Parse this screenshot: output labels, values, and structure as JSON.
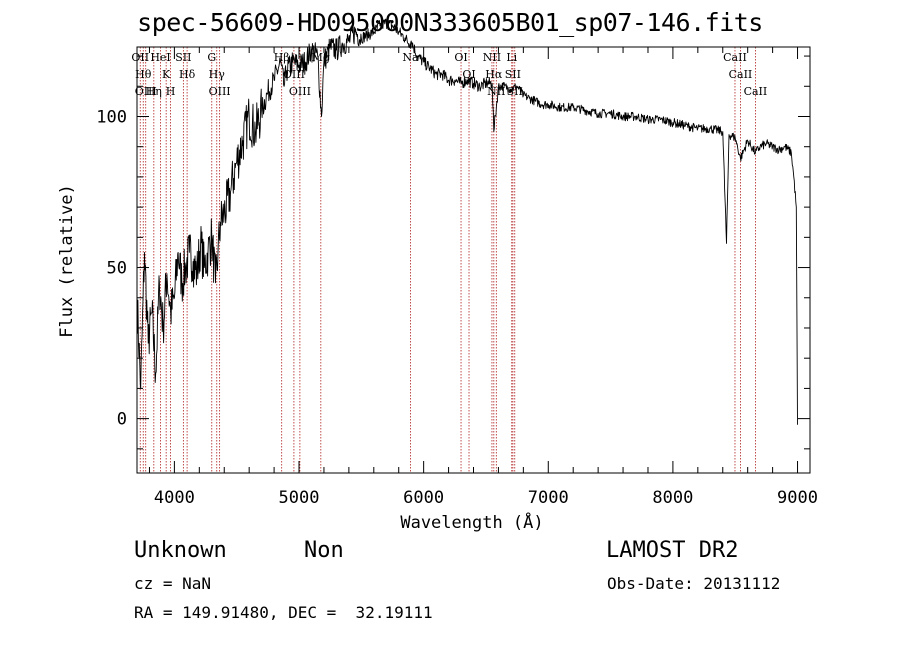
{
  "colors": {
    "axis": "#000000",
    "spectrum": "#000000",
    "line_marker": "#b02020"
  },
  "chart_data": {
    "type": "line",
    "title": "spec-56609-HD095000N333605B01_sp07-146.fits",
    "xlabel": "Wavelength (Å)",
    "ylabel": "Flux (relative)",
    "xlim": [
      3700,
      9100
    ],
    "ylim": [
      -18,
      123
    ],
    "xticks": [
      {
        "value": 4000,
        "label": "4000"
      },
      {
        "value": 5000,
        "label": "5000"
      },
      {
        "value": 6000,
        "label": "6000"
      },
      {
        "value": 7000,
        "label": "7000"
      },
      {
        "value": 8000,
        "label": "8000"
      },
      {
        "value": 9000,
        "label": "9000"
      }
    ],
    "yticks": [
      {
        "value": 0,
        "label": "0"
      },
      {
        "value": 50,
        "label": "50"
      },
      {
        "value": 100,
        "label": "100"
      }
    ],
    "grid": false,
    "series": [
      {
        "x": [
          3700,
          3730,
          3760,
          3790,
          3820,
          3850,
          3880,
          3910,
          3940,
          3970,
          4000,
          4030,
          4060,
          4090,
          4120,
          4150,
          4180,
          4210,
          4240,
          4270,
          4300,
          4330,
          4350,
          4370,
          4400,
          4450,
          4500,
          4550,
          4600,
          4650,
          4700,
          4750,
          4800,
          4850,
          4880,
          4900,
          4950,
          5000,
          5050,
          5100,
          5150,
          5180,
          5200,
          5250,
          5300,
          5350,
          5400,
          5450,
          5500,
          5550,
          5600,
          5650,
          5700,
          5750,
          5800,
          5850,
          5890,
          5900,
          5950,
          6000,
          6050,
          6100,
          6150,
          6200,
          6250,
          6300,
          6350,
          6400,
          6450,
          6500,
          6550,
          6563,
          6600,
          6650,
          6700,
          6750,
          6800,
          6850,
          6900,
          6950,
          7000,
          7100,
          7200,
          7300,
          7400,
          7500,
          7600,
          7700,
          7800,
          7900,
          8000,
          8100,
          8200,
          8300,
          8400,
          8430,
          8450,
          8500,
          8542,
          8600,
          8662,
          8700,
          8750,
          8800,
          8850,
          8900,
          8950,
          8970,
          8990,
          9000
        ],
        "y": [
          40,
          10,
          55,
          25,
          35,
          15,
          45,
          30,
          48,
          35,
          40,
          55,
          45,
          50,
          55,
          52,
          48,
          58,
          50,
          55,
          60,
          45,
          55,
          65,
          68,
          75,
          85,
          92,
          100,
          95,
          102,
          108,
          112,
          118,
          110,
          115,
          118,
          117,
          118,
          122,
          120,
          100,
          118,
          123,
          122,
          124,
          125,
          128,
          126,
          127,
          128,
          130,
          131,
          130,
          128,
          126,
          124,
          125,
          120,
          118,
          116,
          114,
          114,
          112,
          112,
          111,
          112,
          111,
          110,
          111,
          111,
          95,
          110,
          110,
          109,
          110,
          107,
          106,
          105,
          104,
          104,
          103,
          103,
          102,
          101,
          101,
          100,
          100,
          99,
          99,
          98,
          97,
          96,
          96,
          95,
          58,
          94,
          93,
          86,
          92,
          88,
          90,
          91,
          90,
          89,
          90,
          88,
          80,
          70,
          -2
        ]
      }
    ],
    "line_markers": [
      {
        "x": 3726,
        "label": "OII"
      },
      {
        "x": 3750,
        "label": "Hθ"
      },
      {
        "x": 3770,
        "label": "OIII"
      },
      {
        "x": 3835,
        "label": "Hη"
      },
      {
        "x": 3889,
        "label": "HeI"
      },
      {
        "x": 3934,
        "label": "K"
      },
      {
        "x": 3969,
        "label": "H"
      },
      {
        "x": 4072,
        "label": "SII"
      },
      {
        "x": 4102,
        "label": "Hδ"
      },
      {
        "x": 4300,
        "label": "G"
      },
      {
        "x": 4340,
        "label": "Hγ"
      },
      {
        "x": 4363,
        "label": "OIII"
      },
      {
        "x": 4861,
        "label": "Hβ"
      },
      {
        "x": 4959,
        "label": "OIII"
      },
      {
        "x": 5007,
        "label": "OIII"
      },
      {
        "x": 5175,
        "label": "Mg"
      },
      {
        "x": 5894,
        "label": "Na"
      },
      {
        "x": 6300,
        "label": "OI"
      },
      {
        "x": 6364,
        "label": "OI"
      },
      {
        "x": 6548,
        "label": "NII"
      },
      {
        "x": 6563,
        "label": "Hα"
      },
      {
        "x": 6583,
        "label": "NII"
      },
      {
        "x": 6707,
        "label": "Li"
      },
      {
        "x": 6716,
        "label": "SII"
      },
      {
        "x": 6731,
        "label": "SII"
      },
      {
        "x": 8498,
        "label": "CaII"
      },
      {
        "x": 8542,
        "label": "CaII"
      },
      {
        "x": 8662,
        "label": "CaII"
      }
    ]
  },
  "info": {
    "class": "Unknown",
    "subclass": "Non",
    "survey": "LAMOST DR2",
    "cz": "cz = NaN",
    "obs_date": "Obs-Date: 20131112",
    "radec": "RA = 149.91480, DEC =  32.19111"
  }
}
